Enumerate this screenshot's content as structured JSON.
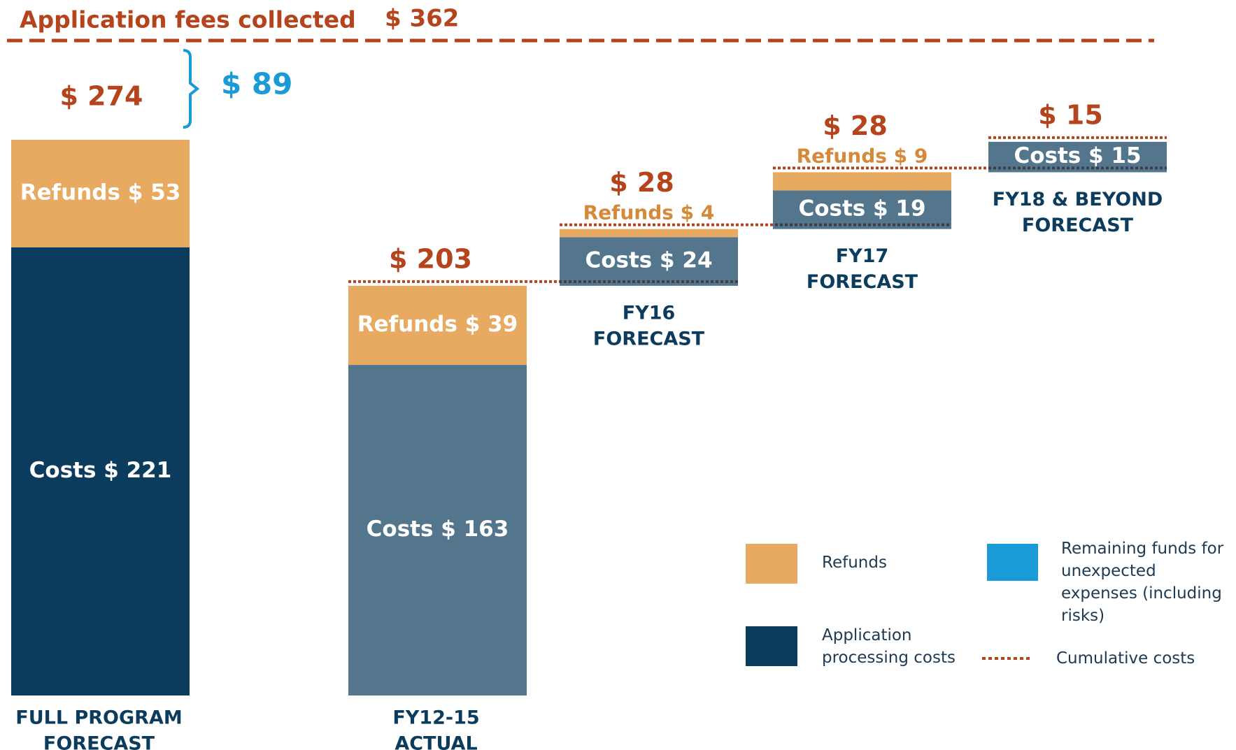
{
  "chart_data": {
    "type": "waterfall",
    "title": "Application fees collected",
    "fees": {
      "value": 362,
      "label": "$ 362",
      "color": "#b5431c"
    },
    "categories": [
      [
        "FULL PROGRAM",
        "FORECAST"
      ],
      [
        "FY12-15",
        "ACTUAL"
      ],
      [
        "FY16",
        "FORECAST"
      ],
      [
        "FY17",
        "FORECAST"
      ],
      [
        "FY18 & BEYOND",
        "FORECAST"
      ]
    ],
    "series": [
      {
        "name": "Application processing costs",
        "color": "#0b3c5d",
        "values": [
          221,
          163,
          24,
          19,
          15
        ],
        "value_labels": [
          "Costs $ 221",
          "Costs $ 163",
          "Costs $ 24",
          "Costs $ 19",
          "Costs $ 15"
        ]
      },
      {
        "name": "Refunds",
        "color": "#e8a961",
        "values": [
          53,
          39,
          4,
          9,
          null
        ],
        "value_labels": [
          "Refunds $ 53",
          "Refunds $ 39",
          "Refunds $ 4",
          "Refunds $ 9",
          null
        ]
      }
    ],
    "totals": [
      274,
      203,
      28,
      28,
      15
    ],
    "total_labels": [
      "$ 274",
      "$ 203",
      "$ 28",
      "$ 28",
      "$ 15"
    ],
    "remaining": {
      "name": "Remaining funds for unexpected expenses (including risks)",
      "color": "#1a9ad6",
      "value": 89,
      "label": "$ 89"
    },
    "cumulative": {
      "name": "Cumulative costs",
      "color": "#b5431c"
    },
    "ylim": [
      0,
      274
    ]
  }
}
